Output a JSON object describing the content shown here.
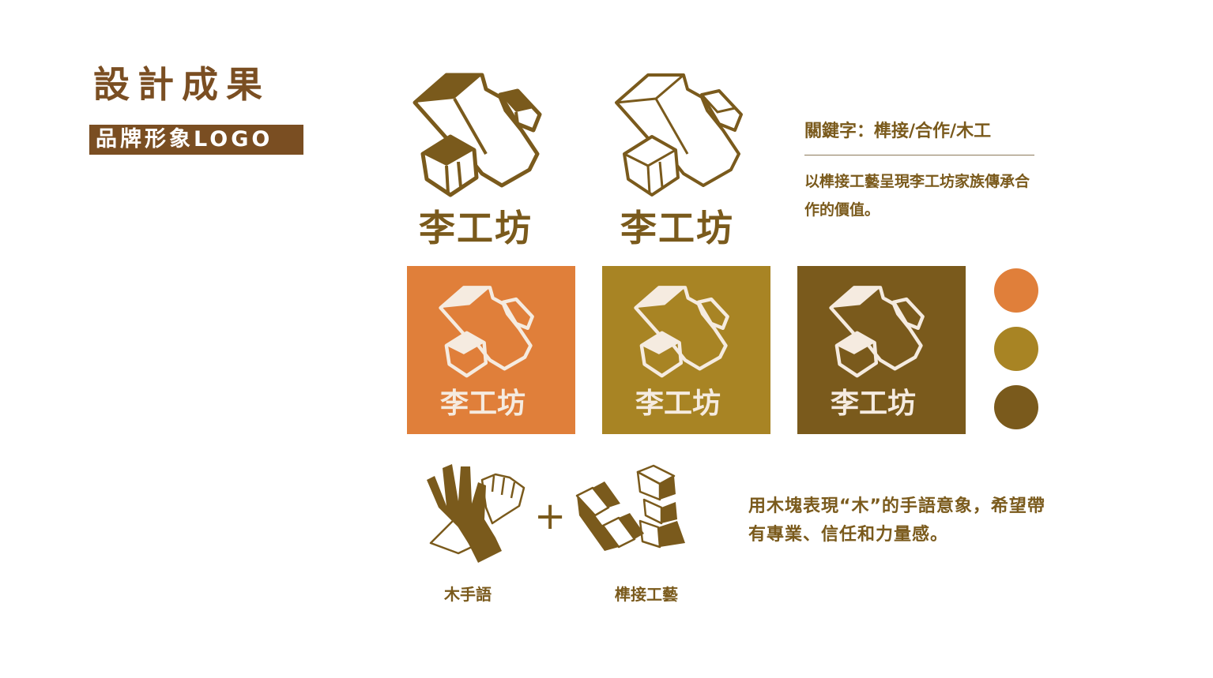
{
  "header": {
    "title": "設計成果",
    "subtitle": "品牌形象LOGO"
  },
  "brand": {
    "name": "李工坊",
    "colors": [
      "#e07f3a",
      "#a88424",
      "#7a5a1c"
    ],
    "primary_brown": "#7a5a1c"
  },
  "keywords": {
    "heading": "關鍵字：榫接/合作/木工",
    "description": "以榫接工藝呈現李工坊家族傳承合作的價值。"
  },
  "concept": {
    "hand_caption": "木手語",
    "blocks_caption": "榫接工藝",
    "plus": "+",
    "description": "用木塊表現“木”的手語意象，希望帶有專業、信任和力量感。"
  },
  "icons": [
    "block-logo-icon",
    "hand-sign-icon",
    "joinery-blocks-icon"
  ]
}
